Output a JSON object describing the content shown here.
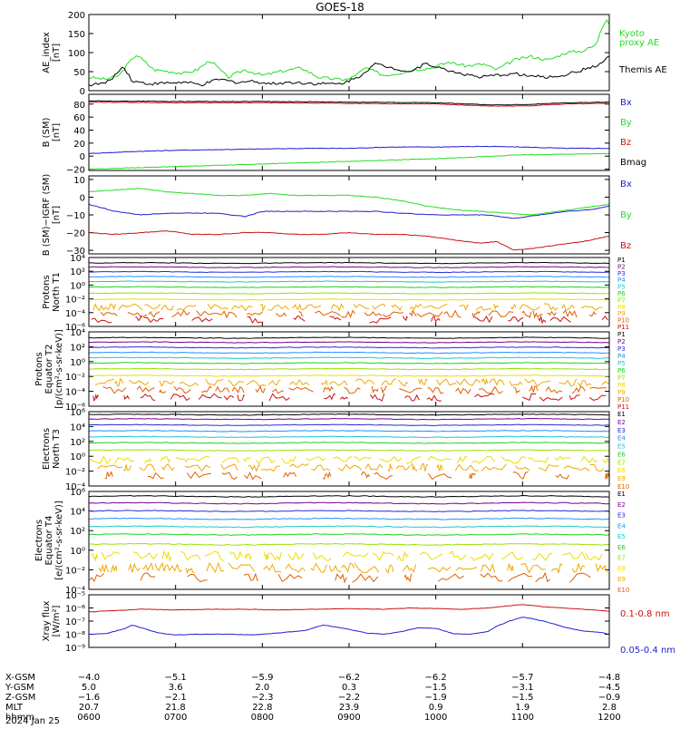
{
  "title": "GOES-18",
  "colors": {
    "green": "#22dd22",
    "blue": "#1f1fd0",
    "red": "#cc1111",
    "darkred": "#880000",
    "black": "#000000",
    "ch": [
      "#000000",
      "#7a0090",
      "#2a2acf",
      "#1f8fff",
      "#21c6c6",
      "#21d021",
      "#9be000",
      "#eddd00",
      "#f0a800",
      "#e06000",
      "#cc1111"
    ]
  },
  "chart_data": [
    {
      "type": "line",
      "ylabel_lines": [
        "AE_index",
        "[nT]"
      ],
      "ylim": [
        0,
        200
      ],
      "yticks": [
        {
          "v": 0,
          "t": "0"
        },
        {
          "v": 50,
          "t": "50"
        },
        {
          "v": 100,
          "t": "100"
        },
        {
          "v": 150,
          "t": "150"
        },
        {
          "v": 200,
          "t": "200"
        }
      ],
      "series": [
        {
          "name": "Kyoto proxy AE",
          "color": "#22dd22",
          "x": [
            6.0,
            6.2,
            6.35,
            6.45,
            6.55,
            6.75,
            6.95,
            7.1,
            7.25,
            7.4,
            7.6,
            7.8,
            8.0,
            8.2,
            8.45,
            8.65,
            8.85,
            9.0,
            9.2,
            9.4,
            9.55,
            9.75,
            9.95,
            10.15,
            10.35,
            10.55,
            10.7,
            10.9,
            11.1,
            11.3,
            11.5,
            11.7,
            11.85,
            11.9,
            11.97,
            12.0
          ],
          "y": [
            35,
            30,
            40,
            70,
            95,
            55,
            50,
            45,
            55,
            80,
            35,
            55,
            40,
            50,
            60,
            35,
            30,
            30,
            60,
            40,
            45,
            55,
            60,
            75,
            65,
            70,
            55,
            80,
            90,
            80,
            100,
            105,
            120,
            160,
            190,
            175
          ]
        },
        {
          "name": "Themis AE",
          "color": "#000000",
          "x": [
            6.0,
            6.2,
            6.3,
            6.4,
            6.5,
            6.7,
            6.9,
            7.1,
            7.3,
            7.5,
            7.7,
            7.9,
            8.1,
            8.3,
            8.5,
            8.7,
            8.9,
            9.1,
            9.3,
            9.5,
            9.7,
            9.9,
            10.1,
            10.3,
            10.5,
            10.7,
            10.9,
            11.1,
            11.3,
            11.5,
            11.7,
            11.9,
            12.0
          ],
          "y": [
            15,
            20,
            40,
            65,
            25,
            18,
            20,
            22,
            15,
            30,
            22,
            25,
            18,
            22,
            20,
            18,
            18,
            35,
            70,
            60,
            50,
            72,
            55,
            45,
            35,
            40,
            45,
            38,
            35,
            42,
            55,
            70,
            90
          ]
        }
      ],
      "legend": [
        {
          "label": "Kyoto",
          "color": "#22dd22"
        },
        {
          "label": "proxy AE",
          "color": "#22dd22"
        },
        {
          "label": "Themis AE",
          "color": "#000000"
        }
      ]
    },
    {
      "type": "line",
      "ylabel_lines": [
        "B (SM)",
        "[nT]"
      ],
      "ylim": [
        -22,
        95
      ],
      "yticks": [
        {
          "v": -20,
          "t": "−20"
        },
        {
          "v": 0,
          "t": "0"
        },
        {
          "v": 20,
          "t": "20"
        },
        {
          "v": 40,
          "t": "40"
        },
        {
          "v": 60,
          "t": "60"
        },
        {
          "v": 80,
          "t": "80"
        }
      ],
      "series": [
        {
          "name": "Bmag",
          "color": "#000000",
          "x": [
            6,
            7,
            8,
            9,
            10,
            10.6,
            11,
            11.5,
            12
          ],
          "y": [
            85,
            84,
            84,
            83,
            82,
            79,
            79,
            82,
            83
          ]
        },
        {
          "name": "Bz",
          "color": "#cc1111",
          "x": [
            6,
            7,
            8,
            9,
            10,
            10.6,
            11,
            11.5,
            12
          ],
          "y": [
            83,
            82,
            82,
            81,
            80,
            77,
            77,
            80,
            81
          ]
        },
        {
          "name": "Bx",
          "color": "#1f1fd0",
          "x": [
            6,
            6.5,
            7,
            7.5,
            8,
            8.5,
            9,
            9.5,
            10,
            10.5,
            11,
            11.5,
            12
          ],
          "y": [
            4,
            7,
            9,
            10,
            11,
            12,
            12,
            14,
            14,
            15,
            14,
            12,
            12
          ]
        },
        {
          "name": "By",
          "color": "#22dd22",
          "x": [
            6,
            6.5,
            7,
            7.5,
            8,
            8.5,
            9,
            9.5,
            10,
            10.5,
            11,
            11.5,
            12
          ],
          "y": [
            -20,
            -18,
            -16,
            -14,
            -12,
            -10,
            -8,
            -6,
            -4,
            -1,
            2,
            3,
            4
          ]
        }
      ],
      "legend": [
        {
          "label": "Bx",
          "color": "#1f1fd0"
        },
        {
          "label": "By",
          "color": "#22dd22"
        },
        {
          "label": "Bz",
          "color": "#cc1111"
        },
        {
          "label": "Bmag",
          "color": "#000000"
        }
      ]
    },
    {
      "type": "line",
      "ylabel_lines": [
        "B (SM)−IGRF (SM)",
        "[nT]"
      ],
      "ylim": [
        -32,
        12
      ],
      "yticks": [
        {
          "v": -30,
          "t": "−30"
        },
        {
          "v": -20,
          "t": "−20"
        },
        {
          "v": -10,
          "t": "−10"
        },
        {
          "v": 0,
          "t": "0"
        },
        {
          "v": 10,
          "t": "10"
        }
      ],
      "series": [
        {
          "name": "Bx",
          "color": "#1f1fd0",
          "x": [
            6,
            6.3,
            6.6,
            6.9,
            7.2,
            7.5,
            7.8,
            8,
            8.3,
            8.6,
            9,
            9.3,
            9.6,
            10,
            10.3,
            10.6,
            10.9,
            11.2,
            11.5,
            11.8,
            12
          ],
          "y": [
            -4,
            -8,
            -10,
            -9,
            -9,
            -9,
            -11,
            -8,
            -8,
            -8,
            -8,
            -8,
            -9,
            -10,
            -10,
            -10,
            -12,
            -10,
            -8,
            -7,
            -5
          ]
        },
        {
          "name": "By",
          "color": "#22dd22",
          "x": [
            6,
            6.3,
            6.6,
            6.9,
            7.2,
            7.5,
            7.8,
            8.1,
            8.4,
            8.7,
            9,
            9.3,
            9.6,
            9.9,
            10.2,
            10.5,
            10.8,
            11.1,
            11.4,
            11.7,
            12
          ],
          "y": [
            3,
            4,
            5,
            3,
            2,
            1,
            1,
            2,
            1,
            1,
            1,
            0,
            -2,
            -5,
            -7,
            -8,
            -9,
            -10,
            -8,
            -6,
            -4
          ]
        },
        {
          "name": "Bz",
          "color": "#cc1111",
          "x": [
            6,
            6.3,
            6.6,
            6.9,
            7.2,
            7.5,
            7.8,
            8.1,
            8.4,
            8.7,
            9,
            9.3,
            9.6,
            9.9,
            10.2,
            10.5,
            10.7,
            10.9,
            11.1,
            11.4,
            11.7,
            12
          ],
          "y": [
            -20,
            -21,
            -20,
            -19,
            -21,
            -21,
            -20,
            -20,
            -21,
            -21,
            -20,
            -21,
            -21,
            -22,
            -24,
            -26,
            -25,
            -30,
            -29,
            -27,
            -25,
            -22
          ]
        }
      ],
      "legend": [
        {
          "label": "Bx",
          "color": "#1f1fd0"
        },
        {
          "label": "By",
          "color": "#22dd22"
        },
        {
          "label": "Bz",
          "color": "#cc1111"
        }
      ]
    },
    {
      "type": "line",
      "log": true,
      "ylabel_lines": [
        "Protons",
        "North T1"
      ],
      "ylim": [
        -6,
        4
      ],
      "yticks": [
        {
          "v": 4,
          "t": "10⁴"
        },
        {
          "v": 2,
          "t": "10²"
        },
        {
          "v": 0,
          "t": "10⁰"
        },
        {
          "v": -2,
          "t": "10⁻²"
        },
        {
          "v": -4,
          "t": "10⁻⁴"
        },
        {
          "v": -6,
          "t": "10⁻⁶"
        }
      ],
      "levels": [
        3.2,
        2.6,
        1.9,
        1.2,
        0.5,
        -0.3,
        -1.2,
        -2.1,
        -3.2,
        -4.2,
        -5.0
      ],
      "legend": [
        {
          "label": "P1"
        },
        {
          "label": "P2"
        },
        {
          "label": "P3"
        },
        {
          "label": "P4"
        },
        {
          "label": "P5"
        },
        {
          "label": "P6"
        },
        {
          "label": "P7"
        },
        {
          "label": "P8"
        },
        {
          "label": "P9"
        },
        {
          "label": "P10"
        },
        {
          "label": "P11"
        }
      ]
    },
    {
      "type": "line",
      "log": true,
      "ylabel_lines": [
        "Protons",
        "Equator T2",
        "[p/(cm²-s-sr-keV)]"
      ],
      "ylim": [
        -6,
        4
      ],
      "yticks": [
        {
          "v": 4,
          "t": "10⁴"
        },
        {
          "v": 2,
          "t": "10²"
        },
        {
          "v": 0,
          "t": "10⁰"
        },
        {
          "v": -2,
          "t": "10⁻²"
        },
        {
          "v": -4,
          "t": "10⁻⁴"
        },
        {
          "v": -6,
          "t": "10⁻⁶"
        }
      ],
      "levels": [
        3.2,
        2.6,
        1.9,
        1.2,
        0.5,
        -0.2,
        -1.0,
        -1.9,
        -2.8,
        -3.8,
        -4.8
      ],
      "legend": [
        {
          "label": "P1"
        },
        {
          "label": "P2"
        },
        {
          "label": "P3"
        },
        {
          "label": "P4"
        },
        {
          "label": "P5"
        },
        {
          "label": "P6"
        },
        {
          "label": "P7"
        },
        {
          "label": "P8"
        },
        {
          "label": "P9"
        },
        {
          "label": "P10"
        },
        {
          "label": "P11"
        }
      ]
    },
    {
      "type": "line",
      "log": true,
      "ylabel_lines": [
        "Electrons",
        "North T3"
      ],
      "ylim": [
        -4,
        6
      ],
      "yticks": [
        {
          "v": 6,
          "t": "10⁶"
        },
        {
          "v": 4,
          "t": "10⁴"
        },
        {
          "v": 2,
          "t": "10²"
        },
        {
          "v": 0,
          "t": "10⁰"
        },
        {
          "v": -2,
          "t": "10⁻²"
        },
        {
          "v": -4,
          "t": "10⁻⁴"
        }
      ],
      "levels": [
        5.6,
        5.0,
        4.2,
        3.4,
        2.6,
        1.8,
        0.8,
        -0.5,
        -1.5,
        -2.6
      ],
      "legend": [
        {
          "label": "E1"
        },
        {
          "label": "E2"
        },
        {
          "label": "E3"
        },
        {
          "label": "E4"
        },
        {
          "label": "E5"
        },
        {
          "label": "E6"
        },
        {
          "label": "E7"
        },
        {
          "label": "E8"
        },
        {
          "label": "E9"
        },
        {
          "label": "E10"
        }
      ]
    },
    {
      "type": "line",
      "log": true,
      "ylabel_lines": [
        "Electrons",
        "Equator T4",
        "[e/(cm²-s-sr-keV)]"
      ],
      "ylim": [
        -4,
        6
      ],
      "yticks": [
        {
          "v": 6,
          "t": "10⁶"
        },
        {
          "v": 4,
          "t": "10⁴"
        },
        {
          "v": 2,
          "t": "10²"
        },
        {
          "v": 0,
          "t": "10⁰"
        },
        {
          "v": -2,
          "t": "10⁻²"
        },
        {
          "v": -4,
          "t": "10⁻⁴"
        }
      ],
      "levels": [
        5.5,
        4.8,
        4.0,
        3.2,
        2.4,
        1.6,
        0.6,
        -0.6,
        -1.8,
        -2.8
      ],
      "legend": [
        {
          "label": "E1"
        },
        {
          "label": "E2"
        },
        {
          "label": "E3"
        },
        {
          "label": "E4"
        },
        {
          "label": "E5"
        },
        {
          "label": "E6"
        },
        {
          "label": "E7"
        },
        {
          "label": "E8"
        },
        {
          "label": "E9"
        },
        {
          "label": "E10"
        }
      ]
    },
    {
      "type": "line",
      "log": true,
      "ylabel_lines": [
        "Xray flux",
        "[W/m²]"
      ],
      "ylim": [
        -9,
        -5
      ],
      "yticks": [
        {
          "v": -5,
          "t": "10⁻⁵"
        },
        {
          "v": -6,
          "t": "10⁻⁶"
        },
        {
          "v": -7,
          "t": "10⁻⁷"
        },
        {
          "v": -8,
          "t": "10⁻⁸"
        },
        {
          "v": -9,
          "t": "10⁻⁹"
        }
      ],
      "series": [
        {
          "name": "0.1-0.8 nm",
          "color": "#cc1111",
          "x": [
            6.0,
            6.3,
            6.6,
            7.0,
            7.4,
            7.8,
            8.2,
            8.6,
            9.0,
            9.4,
            9.7,
            10.0,
            10.3,
            10.6,
            10.9,
            11.0,
            11.1,
            11.3,
            11.6,
            11.8,
            12.0
          ],
          "y": [
            -6.3,
            -6.2,
            -6.1,
            -6.15,
            -6.1,
            -6.1,
            -6.15,
            -6.1,
            -6.05,
            -6.1,
            -6.0,
            -6.05,
            -6.1,
            -6.0,
            -5.8,
            -5.75,
            -5.8,
            -5.95,
            -6.05,
            -6.15,
            -6.25
          ]
        },
        {
          "name": "0.05-0.4 nm",
          "color": "#1f1fd0",
          "x": [
            6.0,
            6.2,
            6.4,
            6.5,
            6.6,
            6.8,
            7.0,
            7.3,
            7.6,
            7.9,
            8.2,
            8.5,
            8.7,
            8.9,
            9.2,
            9.4,
            9.6,
            9.8,
            10.0,
            10.2,
            10.4,
            10.6,
            10.7,
            10.85,
            11.0,
            11.1,
            11.3,
            11.5,
            11.7,
            11.9,
            12.0
          ],
          "y": [
            -8.0,
            -7.95,
            -7.6,
            -7.3,
            -7.5,
            -7.9,
            -8.05,
            -8.0,
            -8.0,
            -8.05,
            -7.9,
            -7.7,
            -7.3,
            -7.5,
            -7.9,
            -8.0,
            -7.8,
            -7.5,
            -7.55,
            -7.95,
            -8.0,
            -7.8,
            -7.4,
            -7.0,
            -6.7,
            -6.8,
            -7.1,
            -7.5,
            -7.75,
            -7.85,
            -8.0
          ]
        }
      ],
      "legend": [
        {
          "label": "0.1-0.8 nm",
          "color": "#cc1111"
        },
        {
          "label": "0.05-0.4 nm",
          "color": "#1f1fd0"
        }
      ]
    }
  ],
  "xaxis": {
    "row_labels": [
      "X-GSM",
      "Y-GSM",
      "Z-GSM",
      "MLT",
      "hhmm"
    ],
    "date": "2024 Jan 25",
    "columns": [
      {
        "x": 6,
        "vals": [
          "−4.0",
          "5.0",
          "−1.6",
          "20.7",
          "0600"
        ]
      },
      {
        "x": 7,
        "vals": [
          "−5.1",
          "3.6",
          "−2.1",
          "21.8",
          "0700"
        ]
      },
      {
        "x": 8,
        "vals": [
          "−5.9",
          "2.0",
          "−2.3",
          "22.8",
          "0800"
        ]
      },
      {
        "x": 9,
        "vals": [
          "−6.2",
          "0.3",
          "−2.2",
          "23.9",
          "0900"
        ]
      },
      {
        "x": 10,
        "vals": [
          "−6.2",
          "−1.5",
          "−1.9",
          "0.9",
          "1000"
        ]
      },
      {
        "x": 11,
        "vals": [
          "−5.7",
          "−3.1",
          "−1.5",
          "1.9",
          "1100"
        ]
      },
      {
        "x": 12,
        "vals": [
          "−4.8",
          "−4.5",
          "−0.9",
          "2.8",
          "1200"
        ]
      }
    ]
  }
}
